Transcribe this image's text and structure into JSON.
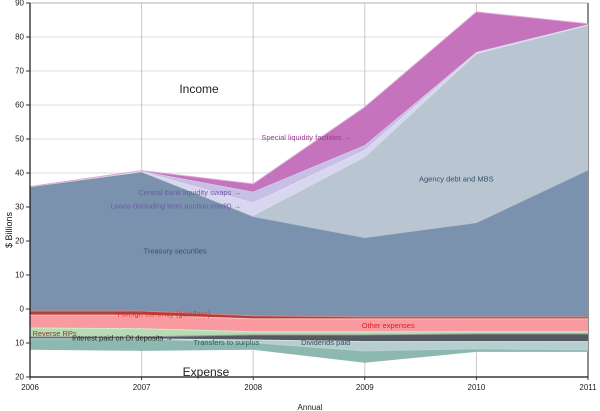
{
  "chart_data": {
    "type": "area",
    "note": "Stacked stream/area chart of income (above zero) and expense (below zero) bands in $ billions; values = band thickness, top/bottom = stacked boundaries read from the chart.",
    "x": [
      2006,
      2007,
      2008,
      2009,
      2010,
      2011
    ],
    "x_axis": {
      "title": "Annual",
      "ticks": [
        "2006",
        "2007",
        "2008",
        "2009",
        "2010",
        "2011"
      ]
    },
    "y_axis": {
      "title": "$ Billions",
      "range": [
        -20,
        90
      ],
      "tick_values": [
        90,
        80,
        70,
        60,
        50,
        40,
        30,
        20,
        10,
        0,
        -10,
        -20
      ],
      "tick_labels": [
        "90",
        "80",
        "70",
        "60",
        "50",
        "40",
        "30",
        "20",
        "10",
        "0",
        "10",
        "20"
      ]
    },
    "region_labels": {
      "income": "Income",
      "expense": "Expense"
    },
    "grid": {
      "h_color": "#dcdcdc",
      "v_color": "#c9c9c9",
      "top_border": "#b3b3b3",
      "axis_color": "#111111",
      "right_border": "#444444"
    },
    "series": [
      {
        "id": "treasury",
        "name": "Treasury securities",
        "color": "#7a92ad",
        "values": [
          36.6,
          41.0,
          29.2,
          23.3,
          27.7,
          43.2
        ],
        "top": [
          36.0,
          40.4,
          27.2,
          21.0,
          25.4,
          40.9
        ],
        "bottom": [
          -0.6,
          -0.6,
          -2.0,
          -2.3,
          -2.3,
          -2.3
        ]
      },
      {
        "id": "agency",
        "name": "Agency debt and MBS",
        "color": "#b9c5d1",
        "values": [
          0,
          0,
          0.3,
          23.7,
          49.7,
          42.6
        ],
        "top": [
          36.0,
          40.4,
          27.5,
          44.7,
          75.1,
          83.5
        ],
        "bottom": [
          36.0,
          40.4,
          27.2,
          21.0,
          25.4,
          40.9
        ]
      },
      {
        "id": "loans",
        "name": "Loans (including term auction credit)",
        "color": "#d9d6f0",
        "values": [
          0,
          0.1,
          3.8,
          2.1,
          0.3,
          0.1
        ],
        "top": [
          36.0,
          40.5,
          31.3,
          46.8,
          75.4,
          83.6
        ],
        "bottom": [
          36.0,
          40.4,
          27.5,
          44.7,
          75.1,
          83.5
        ]
      },
      {
        "id": "swaps",
        "name": "Central bank liquidity swaps",
        "color": "#c7bfe6",
        "values": [
          0,
          0.1,
          3.2,
          1.4,
          0.2,
          0.1
        ],
        "top": [
          36.0,
          40.6,
          34.5,
          48.2,
          75.6,
          83.7
        ],
        "bottom": [
          36.0,
          40.5,
          31.3,
          46.8,
          75.4,
          83.6
        ]
      },
      {
        "id": "slf",
        "name": "Special liquidity facilities",
        "color": "#c573bc",
        "values": [
          0,
          0.1,
          2.3,
          11.2,
          11.8,
          0.2
        ],
        "top": [
          36.0,
          40.7,
          36.8,
          59.4,
          87.4,
          83.9
        ],
        "bottom": [
          36.0,
          40.6,
          34.5,
          48.2,
          75.6,
          83.7
        ]
      },
      {
        "id": "fx",
        "name": "Foreign currency (gain/loss)",
        "color": "#b04038",
        "values": [
          1.2,
          1.2,
          0.9,
          0.6,
          0.6,
          0.6
        ],
        "top": [
          -0.6,
          -0.6,
          -2.0,
          -2.3,
          -2.3,
          -2.3
        ],
        "bottom": [
          -1.8,
          -1.8,
          -2.9,
          -2.9,
          -2.9,
          -2.9
        ]
      },
      {
        "id": "other",
        "name": "Other expenses",
        "color": "#f89aa0",
        "values": [
          3.8,
          4.0,
          3.8,
          3.8,
          3.8,
          3.8
        ],
        "top": [
          -1.8,
          -1.8,
          -2.9,
          -2.9,
          -2.9,
          -2.9
        ],
        "bottom": [
          -5.6,
          -5.8,
          -6.7,
          -6.7,
          -6.7,
          -6.7
        ]
      },
      {
        "id": "rrp",
        "name": "Reverse RPs",
        "color": "#b7dbb3",
        "values": [
          2.6,
          2.4,
          0.9,
          0.9,
          0.6,
          0.6
        ],
        "top": [
          -5.6,
          -5.8,
          -6.7,
          -6.7,
          -6.7,
          -6.7
        ],
        "bottom": [
          -8.2,
          -8.2,
          -7.6,
          -7.6,
          -7.3,
          -7.3
        ]
      },
      {
        "id": "dividends",
        "name": "Dividends paid",
        "color": "#545a5e",
        "values": [
          0.6,
          0.6,
          1.5,
          2.0,
          2.3,
          2.3
        ],
        "top": [
          -8.2,
          -8.2,
          -7.6,
          -7.6,
          -7.3,
          -7.3
        ],
        "bottom": [
          -8.8,
          -8.8,
          -9.1,
          -9.6,
          -9.6,
          -9.6
        ]
      },
      {
        "id": "di",
        "name": "Interest paid on DI deposits",
        "color": "#b6cdd2",
        "values": [
          0,
          0,
          0.8,
          2.7,
          2.1,
          2.4
        ],
        "top": [
          -8.8,
          -8.8,
          -9.1,
          -9.6,
          -9.6,
          -9.6
        ],
        "bottom": [
          -8.8,
          -8.8,
          -9.9,
          -12.3,
          -11.7,
          -12.0
        ]
      },
      {
        "id": "transfers",
        "name": "Transfers to surplus",
        "color": "#8cb8b0",
        "values": [
          3.2,
          3.5,
          2.1,
          3.5,
          0.9,
          0.6
        ],
        "top": [
          -8.8,
          -8.8,
          -9.9,
          -12.3,
          -11.7,
          -12.0
        ],
        "bottom": [
          -12.0,
          -12.3,
          -12.0,
          -15.8,
          -12.6,
          -12.6
        ]
      }
    ],
    "annotations": [
      {
        "id": "label-special-liquidity-facilities",
        "text": "Special liquidity facilities →",
        "x": 2008.88,
        "y": 50.4,
        "color": "#9c3d94",
        "anchor": "end"
      },
      {
        "id": "label-central-bank-liquidity-swaps",
        "text": "Central bank liquidity swaps →",
        "x": 2007.89,
        "y": 34.2,
        "color": "#6b5ba4",
        "anchor": "end"
      },
      {
        "id": "label-loans",
        "text": "Loans (including term auction credit) →",
        "x": 2007.89,
        "y": 30.3,
        "color": "#6b5ba4",
        "anchor": "end"
      },
      {
        "id": "label-agency-debt-and-mbs",
        "text": "Agency debt and MBS",
        "x": 2009.82,
        "y": 38.2,
        "color": "#33516e",
        "anchor": "middle"
      },
      {
        "id": "label-treasury-securities",
        "text": "Treasury securities",
        "x": 2007.3,
        "y": 17.1,
        "color": "#33516e",
        "anchor": "middle"
      },
      {
        "id": "label-foreign-currency",
        "text": "Foreign currency (gain/loss)",
        "x": 2007.2,
        "y": -1.4,
        "color": "#e22c20",
        "anchor": "middle"
      },
      {
        "id": "label-other-expenses",
        "text": "Other expenses",
        "x": 2009.21,
        "y": -4.9,
        "color": "#d8231f",
        "anchor": "middle"
      },
      {
        "id": "label-reverse-rps",
        "text": "Reverse RPs",
        "x": 2006.22,
        "y": -7.2,
        "color": "#8c3b2c",
        "anchor": "middle"
      },
      {
        "id": "label-interest-paid-di-deposits",
        "text": "Interest paid on DI deposits →",
        "x": 2007.28,
        "y": -8.6,
        "color": "#222222",
        "anchor": "end"
      },
      {
        "id": "label-dividends-paid",
        "text": "Dividends paid",
        "x": 2008.65,
        "y": -9.9,
        "color": "#3e5058",
        "anchor": "middle"
      },
      {
        "id": "label-transfers-to-surplus",
        "text": "Transfers to surplus",
        "x": 2007.76,
        "y": -9.9,
        "color": "#2e5f58",
        "anchor": "middle"
      }
    ]
  }
}
